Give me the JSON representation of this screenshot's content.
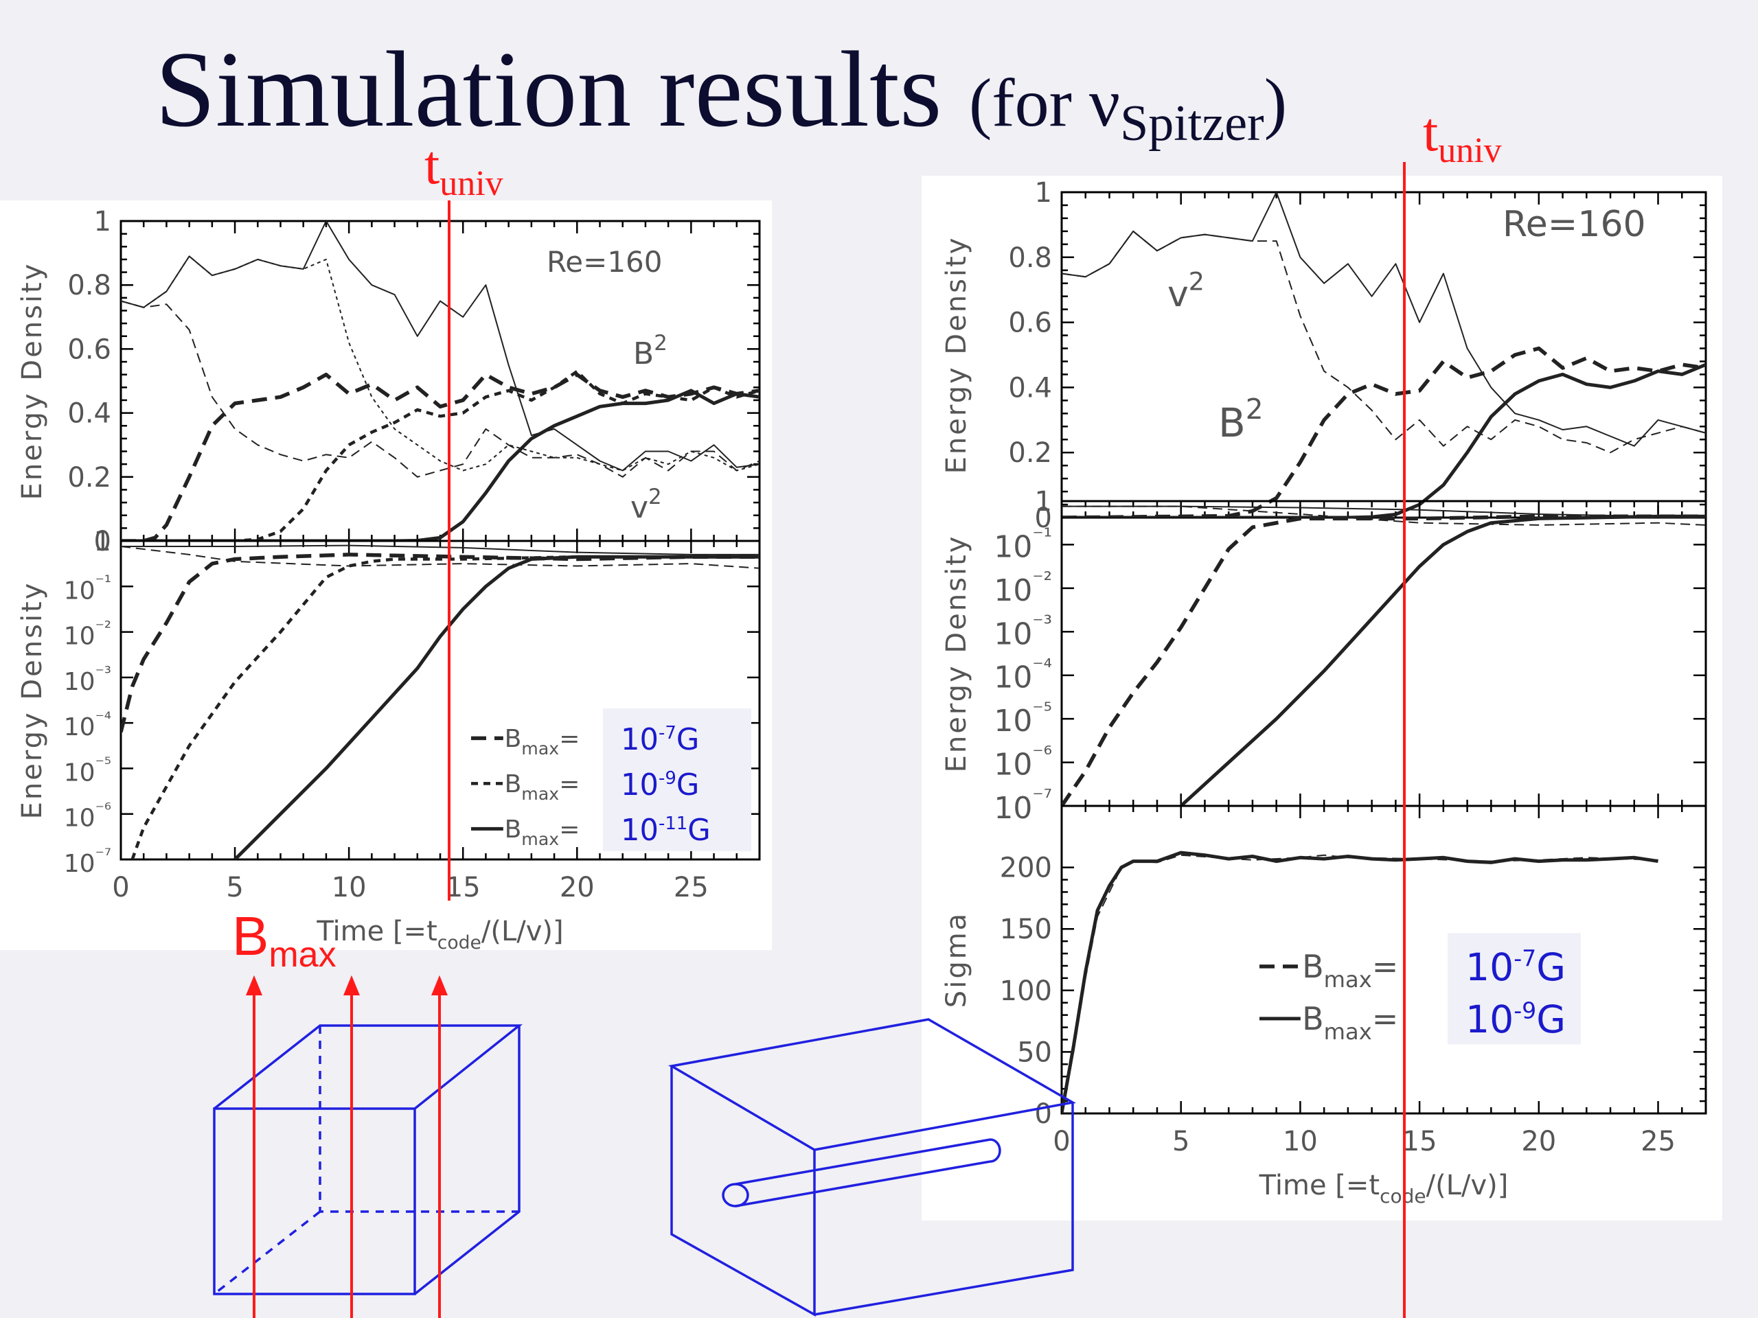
{
  "title": {
    "main": "Simulation results",
    "paren_open": "(for ν",
    "paren_sub": "Spitzer",
    "paren_close": ")"
  },
  "annotations": {
    "t_univ_main": "t",
    "t_univ_sub": "univ",
    "bmax_main": "B",
    "bmax_sub": "max"
  },
  "colors": {
    "title": "#0d0d30",
    "red": "#ff1a1a",
    "blue_text": "#1a1acc",
    "box": "#2020e0"
  },
  "chart_data": [
    {
      "type": "line",
      "panel": "left-top",
      "ylabel": "Energy Density",
      "xlim": [
        0,
        28
      ],
      "ylim": [
        0,
        1
      ],
      "yticks": [
        "0",
        "0.2",
        "0.4",
        "0.6",
        "0.8",
        "1"
      ],
      "annotations": [
        "Re=160",
        "B²",
        "v²"
      ],
      "series": [
        {
          "style": "thin-solid",
          "x": [
            0,
            1,
            2,
            3,
            4,
            5,
            6,
            7,
            8,
            9,
            10,
            11,
            12,
            13,
            14,
            15,
            16,
            17,
            18,
            19,
            20,
            21,
            22,
            23,
            24,
            25,
            26,
            27,
            28
          ],
          "y": [
            0.75,
            0.73,
            0.78,
            0.89,
            0.83,
            0.85,
            0.88,
            0.86,
            0.85,
            1.0,
            0.88,
            0.8,
            0.77,
            0.64,
            0.75,
            0.7,
            0.8,
            0.55,
            0.33,
            0.35,
            0.3,
            0.25,
            0.22,
            0.28,
            0.28,
            0.25,
            0.3,
            0.23,
            0.24
          ]
        },
        {
          "style": "thin-dash",
          "x": [
            0,
            1,
            2,
            3,
            4,
            5,
            6,
            7,
            8,
            9,
            10,
            11,
            12,
            13,
            14,
            15,
            16,
            17,
            18,
            19,
            20,
            21,
            22,
            23,
            24,
            25,
            26,
            27,
            28
          ],
          "y": [
            0.75,
            0.73,
            0.74,
            0.66,
            0.45,
            0.35,
            0.3,
            0.27,
            0.25,
            0.27,
            0.26,
            0.31,
            0.26,
            0.2,
            0.22,
            0.24,
            0.35,
            0.3,
            0.26,
            0.26,
            0.27,
            0.24,
            0.2,
            0.26,
            0.22,
            0.28,
            0.28,
            0.22,
            0.25
          ]
        },
        {
          "style": "thin-dot",
          "x": [
            0,
            1,
            2,
            3,
            4,
            5,
            6,
            7,
            8,
            9,
            10,
            11,
            12,
            13,
            14,
            15,
            16,
            17,
            18,
            19,
            20,
            21,
            22,
            23,
            24,
            25,
            26,
            27,
            28
          ],
          "y": [
            0.75,
            0.73,
            0.78,
            0.89,
            0.83,
            0.85,
            0.88,
            0.86,
            0.85,
            0.88,
            0.62,
            0.45,
            0.35,
            0.3,
            0.25,
            0.22,
            0.24,
            0.3,
            0.28,
            0.26,
            0.26,
            0.24,
            0.22,
            0.26,
            0.24,
            0.28,
            0.26,
            0.22,
            0.24
          ]
        },
        {
          "style": "thick-dash",
          "name": "B_max=10^-7 G",
          "x": [
            0,
            1,
            1.5,
            2,
            3,
            4,
            5,
            6,
            7,
            8,
            9,
            10,
            11,
            12,
            13,
            14,
            15,
            16,
            17,
            18,
            19,
            20,
            21,
            22,
            23,
            24,
            25,
            26,
            27,
            28
          ],
          "y": [
            0,
            0,
            0.01,
            0.05,
            0.2,
            0.36,
            0.43,
            0.44,
            0.45,
            0.48,
            0.52,
            0.46,
            0.49,
            0.44,
            0.48,
            0.42,
            0.44,
            0.52,
            0.48,
            0.46,
            0.48,
            0.52,
            0.47,
            0.45,
            0.47,
            0.45,
            0.46,
            0.48,
            0.46,
            0.47
          ]
        },
        {
          "style": "thick-dot",
          "name": "B_max=10^-9 G",
          "x": [
            0,
            5,
            6,
            7,
            8,
            9,
            10,
            11,
            12,
            13,
            14,
            15,
            16,
            17,
            18,
            19,
            20,
            21,
            22,
            23,
            24,
            25,
            26,
            27,
            28
          ],
          "y": [
            0,
            0,
            0.005,
            0.03,
            0.1,
            0.22,
            0.3,
            0.34,
            0.37,
            0.41,
            0.39,
            0.4,
            0.45,
            0.47,
            0.44,
            0.48,
            0.53,
            0.46,
            0.43,
            0.46,
            0.45,
            0.44,
            0.48,
            0.45,
            0.47
          ]
        },
        {
          "style": "thick-solid",
          "name": "B_max=10^-11 G",
          "x": [
            0,
            12,
            13,
            14,
            15,
            16,
            17,
            18,
            19,
            20,
            21,
            22,
            23,
            24,
            25,
            26,
            27,
            28
          ],
          "y": [
            0,
            0,
            0.001,
            0.01,
            0.06,
            0.15,
            0.25,
            0.32,
            0.36,
            0.39,
            0.42,
            0.43,
            0.43,
            0.44,
            0.47,
            0.43,
            0.46,
            0.45
          ]
        }
      ]
    },
    {
      "type": "line",
      "panel": "left-bottom",
      "ylabel": "Energy Density",
      "yscale": "log",
      "xlabel": "Time [=t_code/(L/v)]",
      "xlim": [
        0,
        28
      ],
      "xticks": [
        "0",
        "5",
        "10",
        "15",
        "20",
        "25"
      ],
      "ylim_exp": [
        -7,
        0
      ],
      "yticks": [
        "10⁻⁷",
        "10⁻⁶",
        "10⁻⁵",
        "10⁻⁴",
        "10⁻³",
        "10⁻²",
        "10⁻¹",
        "1"
      ],
      "series": [
        {
          "style": "thin-solid",
          "x": [
            0,
            5,
            10,
            15,
            20,
            25,
            28
          ],
          "yexp": [
            -0.12,
            -0.12,
            -0.1,
            -0.15,
            -0.25,
            -0.3,
            -0.3
          ]
        },
        {
          "style": "thin-dash",
          "x": [
            0,
            3,
            5,
            10,
            15,
            20,
            25,
            28
          ],
          "yexp": [
            -0.12,
            -0.3,
            -0.45,
            -0.55,
            -0.5,
            -0.55,
            -0.5,
            -0.6
          ]
        },
        {
          "style": "thick-dash",
          "name": "B_max=10^-7 G",
          "x": [
            0,
            0.5,
            1,
            2,
            3,
            4,
            5,
            7,
            10,
            15,
            20,
            25,
            28
          ],
          "yexp": [
            -4.2,
            -3.2,
            -2.6,
            -1.8,
            -0.9,
            -0.5,
            -0.4,
            -0.35,
            -0.3,
            -0.35,
            -0.4,
            -0.35,
            -0.35
          ]
        },
        {
          "style": "thick-dot",
          "name": "B_max=10^-9 G",
          "x": [
            0.5,
            1,
            3,
            5,
            7,
            9,
            10,
            11,
            12,
            15,
            20,
            25,
            28
          ],
          "yexp": [
            -7,
            -6.3,
            -4.5,
            -3.1,
            -2.0,
            -0.8,
            -0.55,
            -0.45,
            -0.4,
            -0.4,
            -0.35,
            -0.35,
            -0.35
          ]
        },
        {
          "style": "thick-solid",
          "name": "B_max=10^-11 G",
          "x": [
            5,
            7,
            9,
            11,
            13,
            14,
            15,
            16,
            17,
            18,
            20,
            25,
            28
          ],
          "yexp": [
            -7,
            -6,
            -5,
            -3.9,
            -2.8,
            -2.1,
            -1.5,
            -1.0,
            -0.6,
            -0.4,
            -0.35,
            -0.35,
            -0.35
          ]
        }
      ]
    },
    {
      "type": "line",
      "panel": "right-top",
      "ylabel": "Energy Density",
      "xlim": [
        0,
        27
      ],
      "ylim": [
        0,
        1
      ],
      "yticks": [
        "0",
        "0.2",
        "0.4",
        "0.6",
        "0.8",
        "1"
      ],
      "annotations": [
        "Re=160",
        "v²",
        "B²"
      ],
      "series": [
        {
          "style": "thin-solid",
          "x": [
            0,
            1,
            2,
            3,
            4,
            5,
            6,
            7,
            8,
            9,
            10,
            11,
            12,
            13,
            14,
            15,
            16,
            17,
            18,
            19,
            20,
            21,
            22,
            23,
            24,
            25,
            26,
            27
          ],
          "y": [
            0.75,
            0.74,
            0.78,
            0.88,
            0.82,
            0.86,
            0.87,
            0.86,
            0.85,
            1.0,
            0.8,
            0.72,
            0.78,
            0.68,
            0.78,
            0.6,
            0.75,
            0.52,
            0.4,
            0.32,
            0.3,
            0.27,
            0.28,
            0.25,
            0.22,
            0.3,
            0.28,
            0.26
          ]
        },
        {
          "style": "thin-dash",
          "x": [
            0,
            1,
            2,
            3,
            4,
            5,
            6,
            7,
            8,
            9,
            10,
            11,
            12,
            13,
            14,
            15,
            16,
            17,
            18,
            19,
            20,
            21,
            22,
            23,
            24,
            25,
            26,
            27
          ],
          "y": [
            0.75,
            0.74,
            0.78,
            0.88,
            0.82,
            0.86,
            0.87,
            0.86,
            0.85,
            0.85,
            0.62,
            0.45,
            0.4,
            0.33,
            0.24,
            0.3,
            0.22,
            0.28,
            0.24,
            0.3,
            0.28,
            0.24,
            0.23,
            0.2,
            0.24,
            0.26,
            0.28,
            0.26
          ]
        },
        {
          "style": "thick-dash",
          "name": "B_max=10^-7 G",
          "x": [
            0,
            7,
            8,
            9,
            10,
            11,
            12,
            13,
            14,
            15,
            16,
            17,
            18,
            19,
            20,
            21,
            22,
            23,
            24,
            25,
            26,
            27
          ],
          "y": [
            0,
            0.005,
            0.02,
            0.06,
            0.17,
            0.3,
            0.38,
            0.41,
            0.38,
            0.39,
            0.48,
            0.43,
            0.45,
            0.5,
            0.52,
            0.46,
            0.49,
            0.45,
            0.46,
            0.45,
            0.47,
            0.46
          ]
        },
        {
          "style": "thick-solid",
          "name": "B_max=10^-9 G",
          "x": [
            0,
            12,
            13,
            14,
            15,
            16,
            17,
            18,
            19,
            20,
            21,
            22,
            23,
            24,
            25,
            26,
            27
          ],
          "y": [
            0,
            0,
            0.002,
            0.01,
            0.04,
            0.1,
            0.2,
            0.31,
            0.38,
            0.42,
            0.44,
            0.41,
            0.4,
            0.42,
            0.45,
            0.44,
            0.47
          ]
        }
      ]
    },
    {
      "type": "line",
      "panel": "right-middle",
      "ylabel": "Energy Density",
      "yscale": "log",
      "xlim": [
        0,
        27
      ],
      "ylim_exp": [
        -7,
        0
      ],
      "yticks": [
        "10⁻⁷",
        "10⁻⁶",
        "10⁻⁵",
        "10⁻⁴",
        "10⁻³",
        "10⁻²",
        "10⁻¹",
        "1"
      ],
      "series": [
        {
          "style": "thin-solid",
          "x": [
            0,
            5,
            10,
            15,
            20,
            25,
            27
          ],
          "yexp": [
            -0.12,
            -0.12,
            -0.15,
            -0.2,
            -0.3,
            -0.35,
            -0.35
          ]
        },
        {
          "style": "thin-dash",
          "x": [
            0,
            5,
            10,
            15,
            20,
            25,
            27
          ],
          "yexp": [
            -0.12,
            -0.12,
            -0.3,
            -0.5,
            -0.55,
            -0.5,
            -0.55
          ]
        },
        {
          "style": "thick-dash",
          "name": "B_max=10^-7 G",
          "x": [
            0,
            1,
            2,
            3,
            4,
            5,
            6,
            7,
            8,
            10,
            15,
            20,
            25,
            27
          ],
          "yexp": [
            -7,
            -6.2,
            -5.2,
            -4.4,
            -3.7,
            -2.9,
            -2.0,
            -1.1,
            -0.6,
            -0.4,
            -0.4,
            -0.35,
            -0.35,
            -0.35
          ]
        },
        {
          "style": "thick-solid",
          "name": "B_max=10^-9 G",
          "x": [
            5,
            7,
            9,
            11,
            13,
            15,
            16,
            17,
            18,
            20,
            25,
            27
          ],
          "yexp": [
            -7,
            -6,
            -5,
            -3.9,
            -2.7,
            -1.5,
            -1.0,
            -0.7,
            -0.5,
            -0.4,
            -0.35,
            -0.35
          ]
        }
      ]
    },
    {
      "type": "line",
      "panel": "right-bottom",
      "ylabel": "Sigma",
      "xlabel": "Time [=t_code/(L/v)]",
      "xlim": [
        0,
        27
      ],
      "xticks": [
        "0",
        "5",
        "10",
        "15",
        "20",
        "25"
      ],
      "ylim": [
        0,
        250
      ],
      "yticks": [
        "0",
        "50",
        "100",
        "150",
        "200"
      ],
      "series": [
        {
          "style": "thin-dash",
          "name": "B_max=10^-7 G",
          "x": [
            0,
            0.5,
            1,
            1.5,
            2,
            2.5,
            3,
            4,
            5,
            8,
            10,
            11,
            12,
            15,
            18,
            20,
            22,
            25
          ],
          "y": [
            0,
            50,
            110,
            160,
            180,
            200,
            205,
            204,
            210,
            206,
            208,
            210,
            208,
            207,
            205,
            206,
            208,
            206
          ]
        },
        {
          "style": "thick-solid",
          "name": "B_max=10^-9 G",
          "x": [
            0,
            0.5,
            1,
            1.5,
            2,
            2.5,
            3,
            4,
            5,
            6,
            7,
            8,
            9,
            10,
            11,
            12,
            13,
            14,
            15,
            16,
            17,
            18,
            19,
            20,
            21,
            22,
            23,
            24,
            25
          ],
          "y": [
            0,
            55,
            115,
            165,
            185,
            200,
            205,
            205,
            212,
            210,
            207,
            209,
            205,
            208,
            207,
            209,
            207,
            206,
            207,
            208,
            205,
            204,
            207,
            205,
            206,
            206,
            207,
            208,
            205
          ]
        }
      ]
    }
  ],
  "legends": {
    "left": [
      {
        "style": "thick-dash",
        "label": "B",
        "sub": "max",
        "eq": "=",
        "value": "10",
        "exp": "-7",
        "unit": "G"
      },
      {
        "style": "thick-dot",
        "label": "B",
        "sub": "max",
        "eq": "=",
        "value": "10",
        "exp": "-9",
        "unit": "G"
      },
      {
        "style": "thick-solid",
        "label": "B",
        "sub": "max",
        "eq": "=",
        "value": "10",
        "exp": "-11",
        "unit": "G"
      }
    ],
    "right": [
      {
        "style": "thick-dash",
        "label": "B",
        "sub": "max",
        "eq": "=",
        "value": "10",
        "exp": "-7",
        "unit": "G"
      },
      {
        "style": "thick-solid",
        "label": "B",
        "sub": "max",
        "eq": "=",
        "value": "10",
        "exp": "-9",
        "unit": "G"
      }
    ]
  }
}
